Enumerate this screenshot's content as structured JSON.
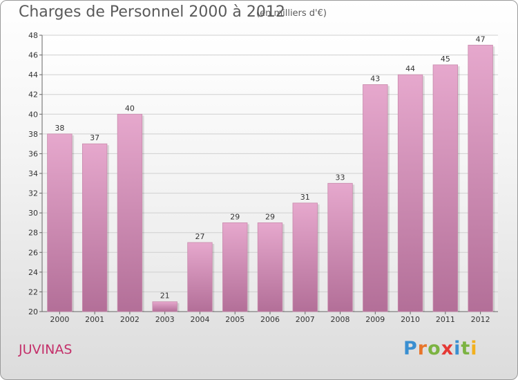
{
  "title": "Charges de Personnel 2000 à 2012",
  "subtitle": "(en milliers d'€)",
  "place": "JUVINAS",
  "logo": {
    "text": "Proxiti",
    "colors": [
      "#3a8fd1",
      "#e8752a",
      "#7cb342",
      "#e53935",
      "#3a8fd1",
      "#7cb342",
      "#f2b01e"
    ]
  },
  "chart_data": {
    "type": "bar",
    "categories": [
      "2000",
      "2001",
      "2002",
      "2003",
      "2004",
      "2005",
      "2006",
      "2007",
      "2008",
      "2009",
      "2010",
      "2011",
      "2012"
    ],
    "values": [
      38,
      37,
      40,
      21,
      27,
      29,
      29,
      31,
      33,
      43,
      44,
      45,
      47
    ],
    "title": "Charges de Personnel 2000 à 2012",
    "ylim": [
      20,
      48
    ],
    "yticks": [
      20,
      22,
      24,
      26,
      28,
      30,
      32,
      34,
      36,
      38,
      40,
      42,
      44,
      46,
      48
    ],
    "grid": true,
    "bar_color": "#d48cb4"
  }
}
